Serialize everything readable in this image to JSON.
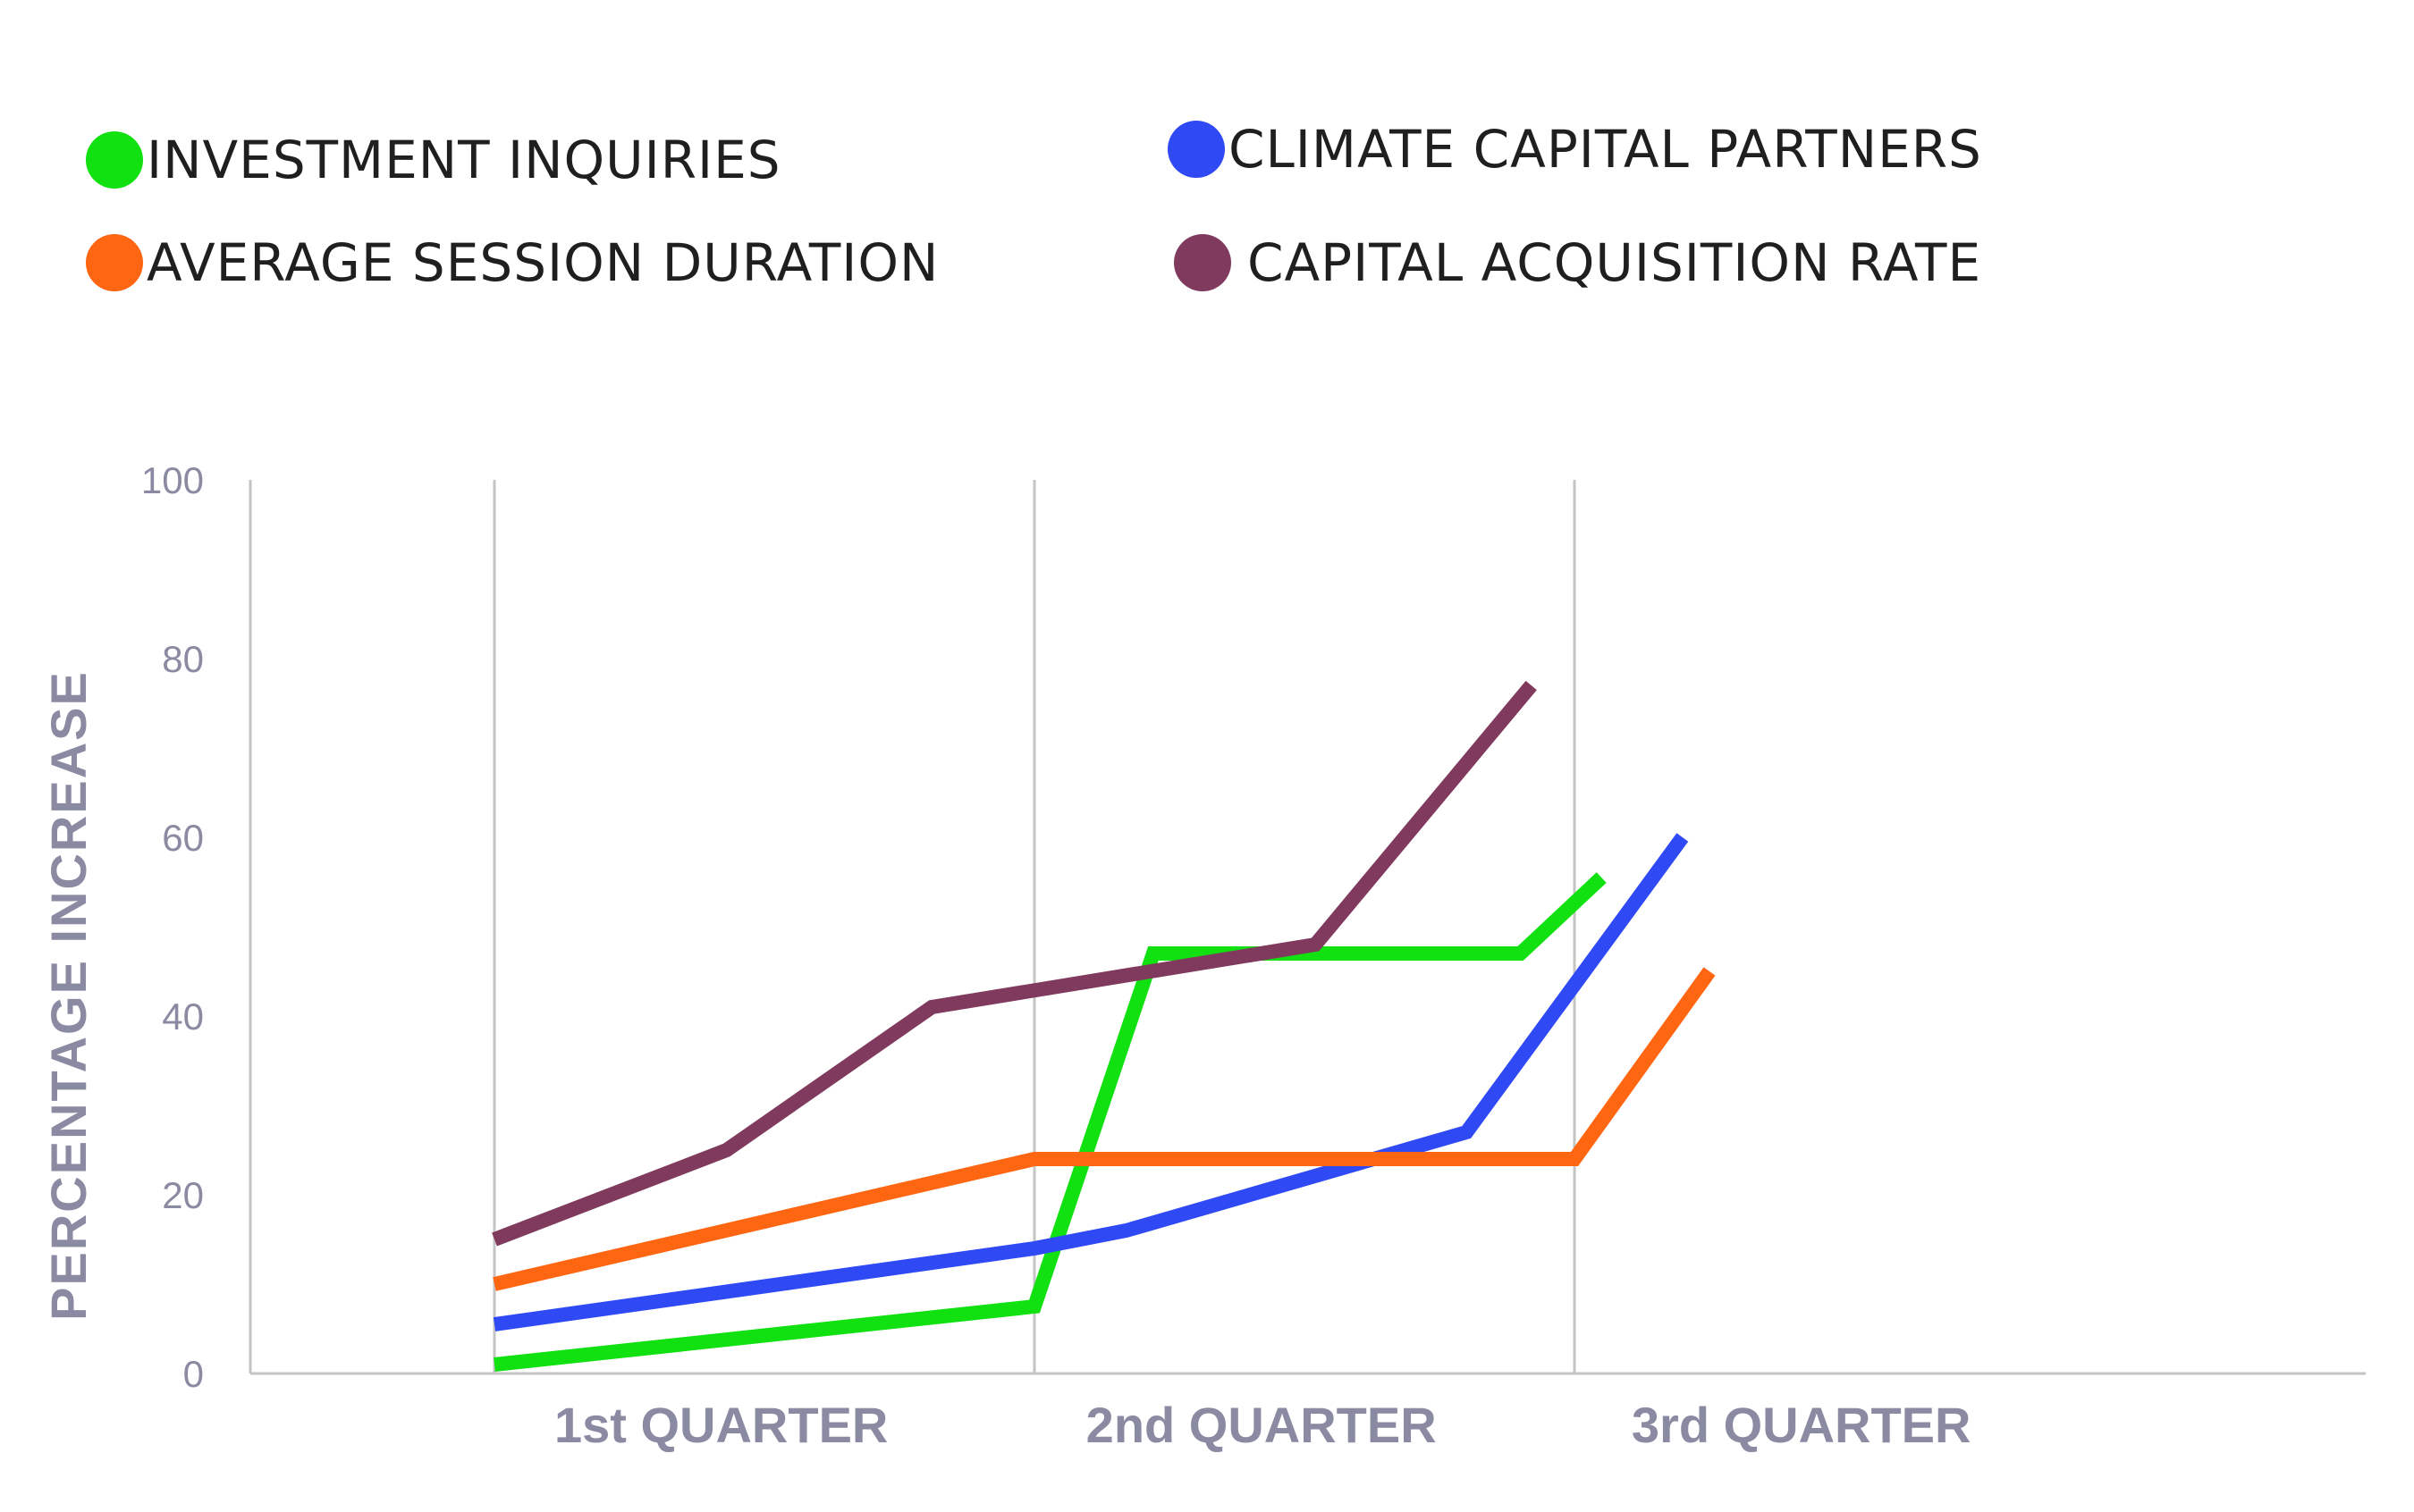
{
  "chart_data": {
    "type": "line",
    "title": "",
    "xlabel": "",
    "ylabel": "PERCENTAGE INCREASE",
    "ylim": [
      0,
      100
    ],
    "yticks": [
      "0",
      "20",
      "40",
      "60",
      "80",
      "100"
    ],
    "categories": [
      "1st QUARTER",
      "2nd QUARTER",
      "3rd QUARTER"
    ],
    "xlim": [
      0,
      3.9
    ],
    "grid": "vertical lines at quarter boundaries",
    "legend_position": "top",
    "series": [
      {
        "name": "INVESTMENT INQUIRIES",
        "color": "#11e011",
        "points": [
          [
            0,
            1
          ],
          [
            1,
            7.5
          ],
          [
            1.22,
            47
          ],
          [
            1.9,
            47
          ],
          [
            2.05,
            55.5
          ]
        ]
      },
      {
        "name": "CLIMATE CAPITAL PARTNERS",
        "color": "#2f4af5",
        "points": [
          [
            0,
            5.5
          ],
          [
            1,
            14
          ],
          [
            1.17,
            16
          ],
          [
            1.8,
            27
          ],
          [
            2.2,
            60
          ]
        ]
      },
      {
        "name": "AVERAGE SESSION DURATION",
        "color": "#ff6611",
        "points": [
          [
            0,
            10
          ],
          [
            1,
            24
          ],
          [
            2,
            24
          ],
          [
            2.25,
            45
          ]
        ]
      },
      {
        "name": "CAPITAL ACQUISITION RATE",
        "color": "#803a5e",
        "points": [
          [
            0,
            15
          ],
          [
            0.43,
            25
          ],
          [
            0.81,
            41
          ],
          [
            1.52,
            48
          ],
          [
            1.92,
            77
          ]
        ]
      }
    ]
  },
  "legend": {
    "items": [
      {
        "label": "INVESTMENT INQUIRIES",
        "color": "#11e011"
      },
      {
        "label": "CLIMATE CAPITAL PARTNERS",
        "color": "#2f4af5"
      },
      {
        "label": "AVERAGE SESSION DURATION",
        "color": "#ff6611"
      },
      {
        "label": "CAPITAL ACQUISITION RATE",
        "color": "#803a5e"
      }
    ]
  }
}
